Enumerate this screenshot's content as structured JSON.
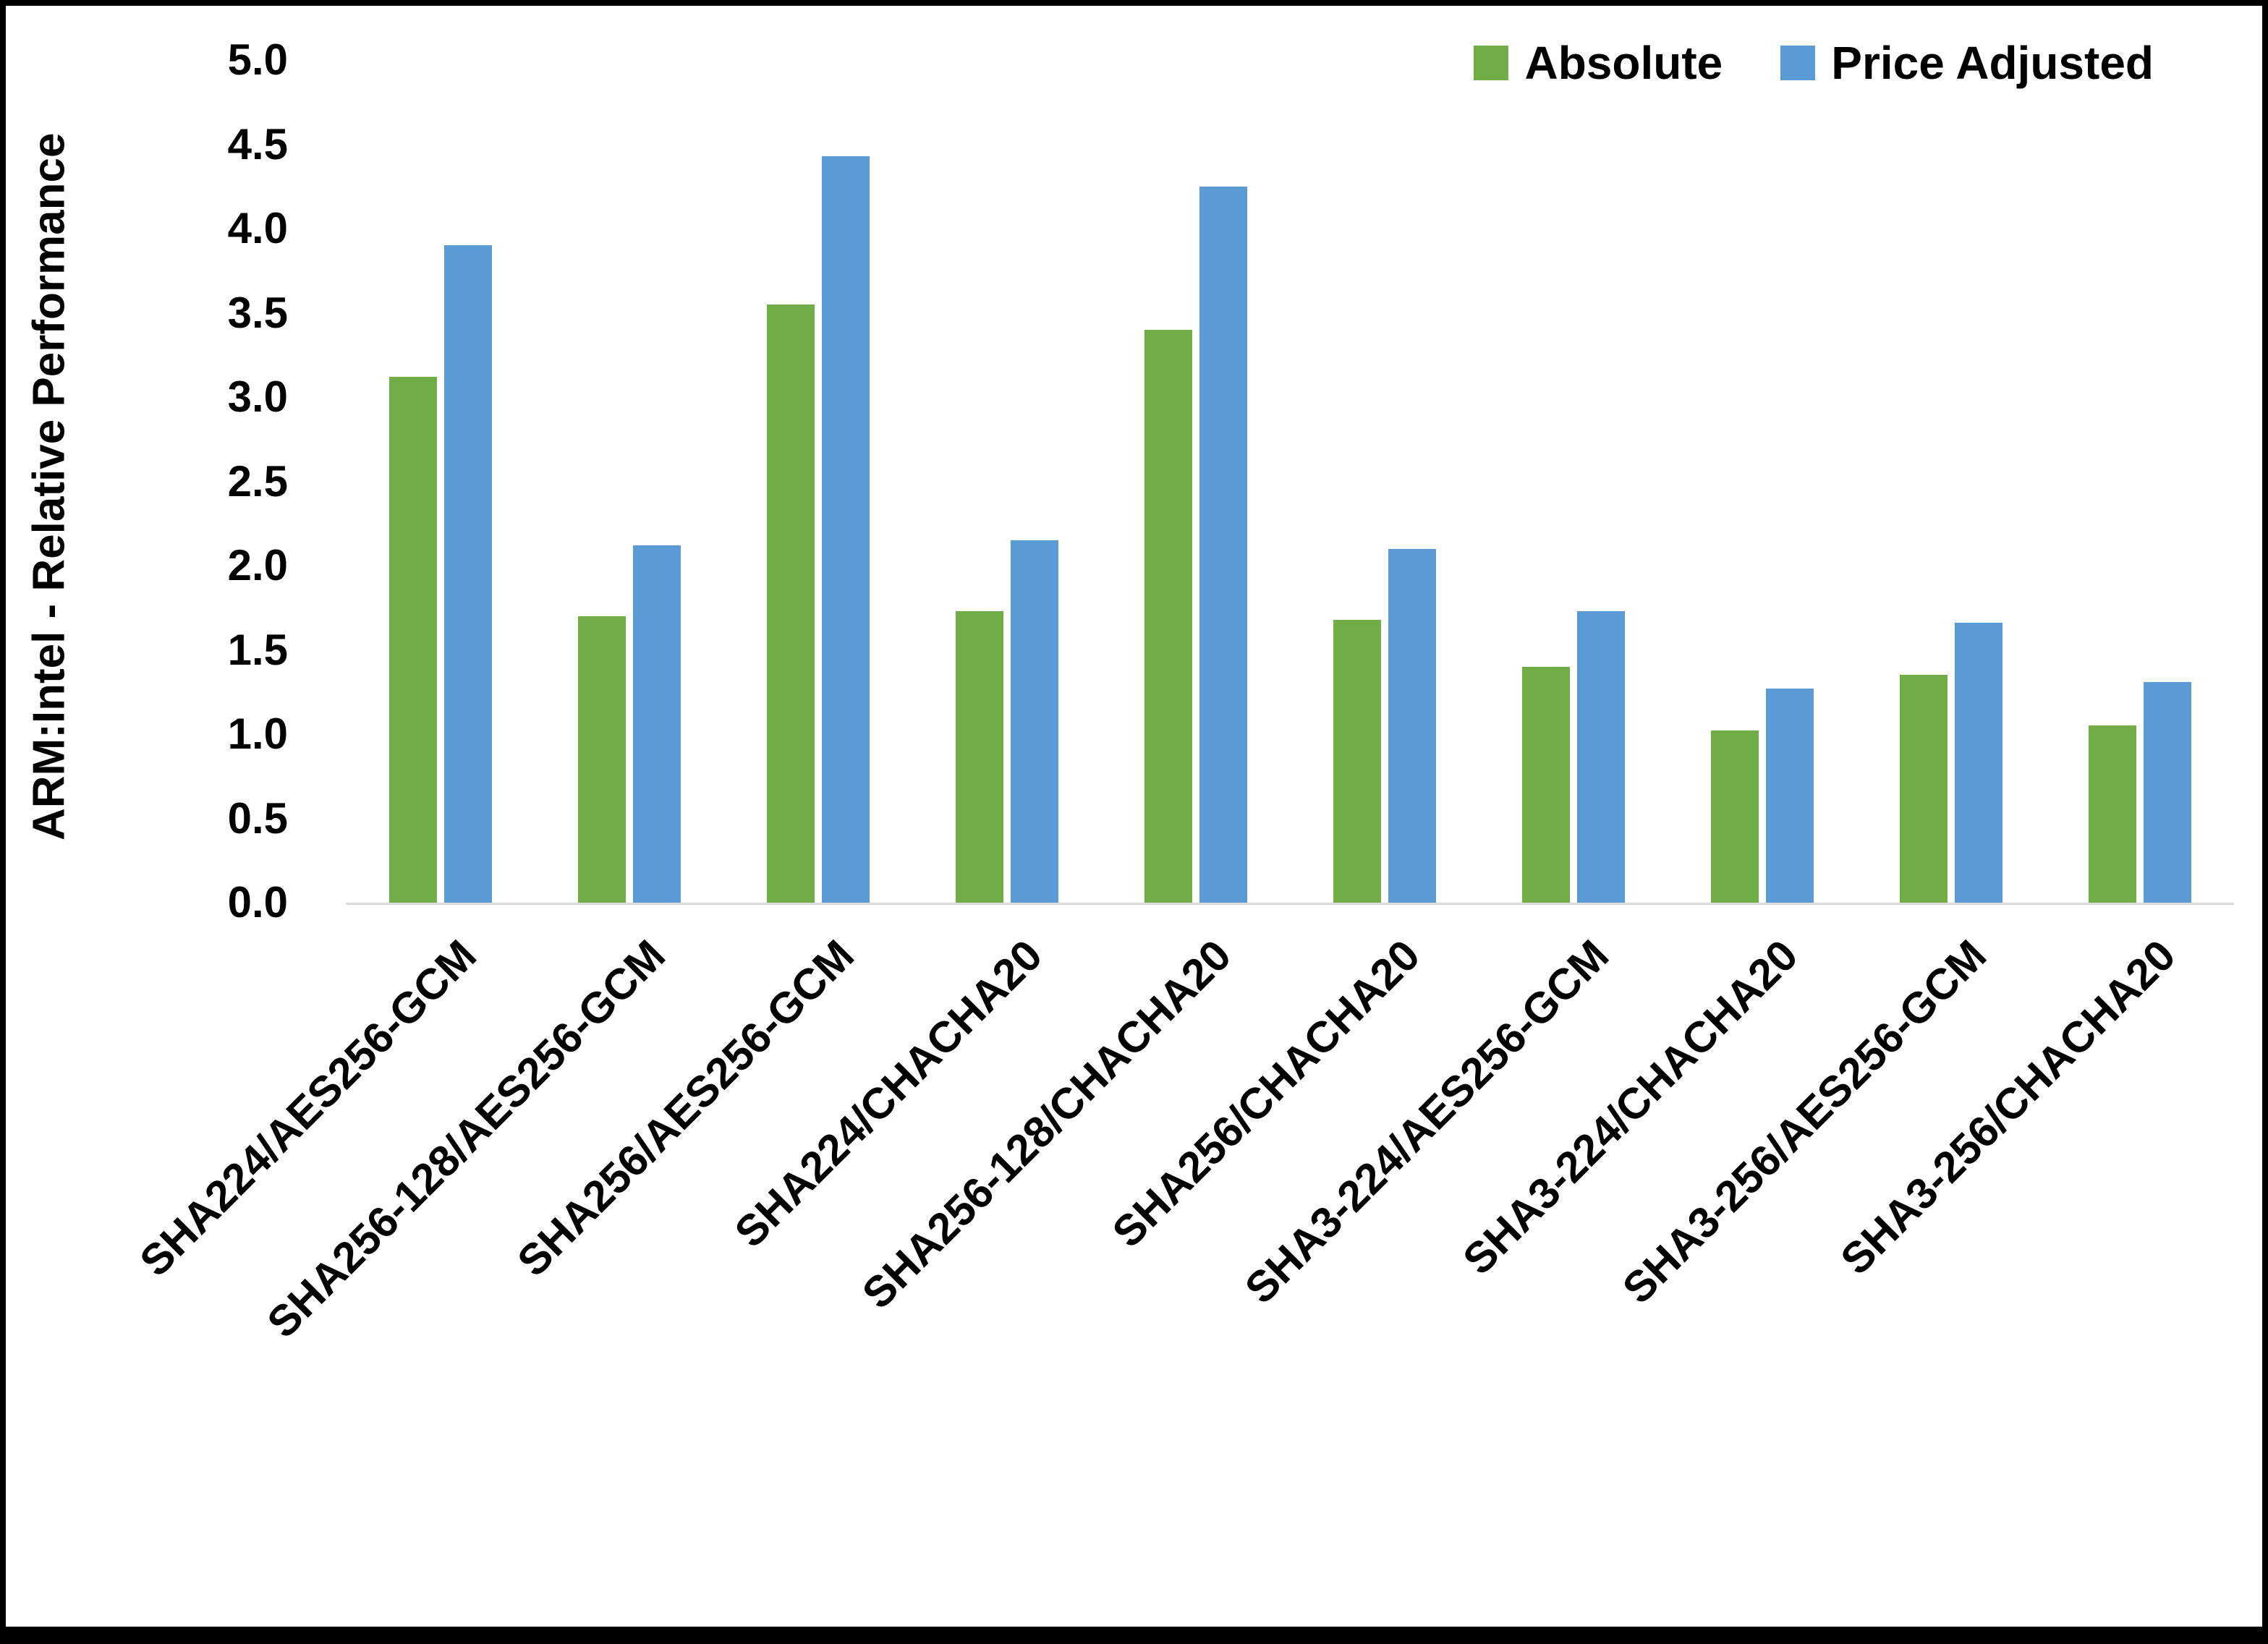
{
  "chart_data": {
    "type": "bar",
    "title": "",
    "xlabel": "",
    "ylabel": "ARM:Intel - Relative Performance",
    "ylim": [
      0,
      5
    ],
    "ytick_step": 0.5,
    "grid": false,
    "legend_position": "top-right",
    "categories": [
      "SHA224/AES256-GCM",
      "SHA256-128/AES256-GCM",
      "SHA256/AES256-GCM",
      "SHA224/CHACHA20",
      "SHA256-128/CHACHA20",
      "SHA256/CHACHA20",
      "SHA3-224/AES256-GCM",
      "SHA3-224/CHACHA20",
      "SHA3-256/AES256-GCM",
      "SHA3-256/CHACHA20"
    ],
    "series": [
      {
        "name": "Absolute",
        "color": "#70AD47",
        "values": [
          3.12,
          1.7,
          3.55,
          1.73,
          3.4,
          1.68,
          1.4,
          1.02,
          1.35,
          1.05
        ]
      },
      {
        "name": "Price Adjusted",
        "color": "#5B9BD5",
        "values": [
          3.9,
          2.12,
          4.43,
          2.15,
          4.25,
          2.1,
          1.73,
          1.27,
          1.66,
          1.31
        ]
      }
    ]
  }
}
